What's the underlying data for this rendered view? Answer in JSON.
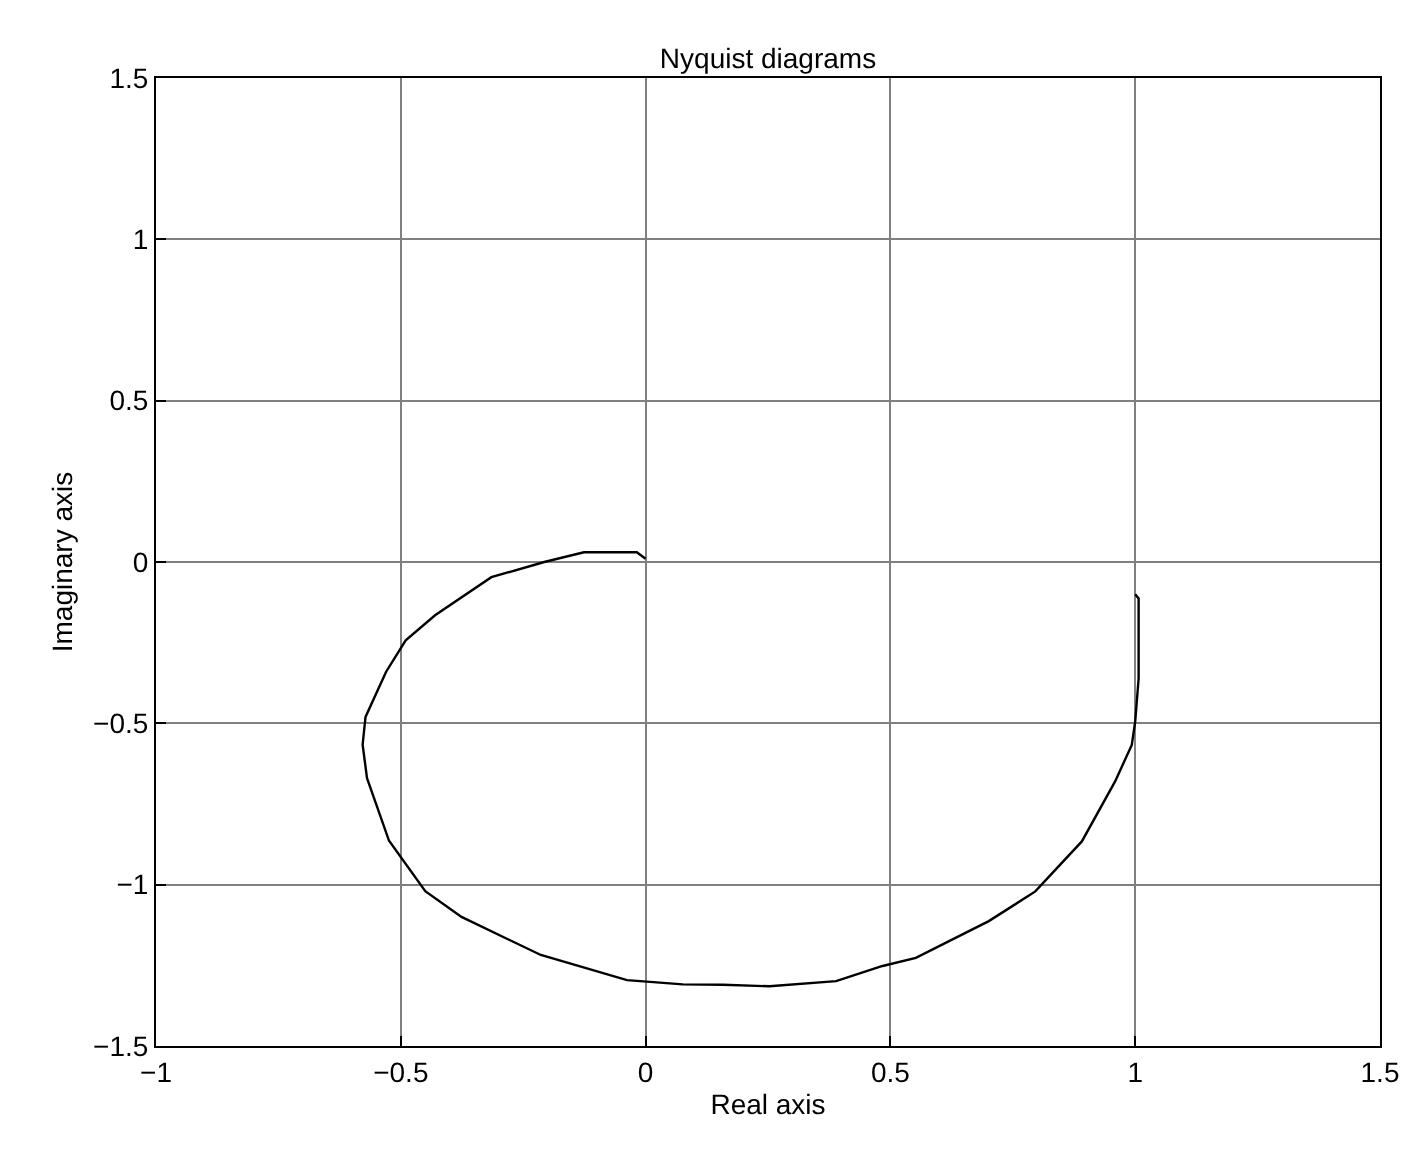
{
  "chart_data": {
    "type": "line",
    "title": "Nyquist diagrams",
    "xlabel": "Real axis",
    "ylabel": "Imaginary axis",
    "series": [
      {
        "color": "#000000",
        "x": [
          1.0,
          1.007,
          1.007,
          1.0,
          0.993,
          0.959,
          0.891,
          0.796,
          0.701,
          0.552,
          0.484,
          0.389,
          0.253,
          0.158,
          0.076,
          -0.038,
          -0.214,
          -0.376,
          -0.45,
          -0.524,
          -0.569,
          -0.578,
          -0.572,
          -0.53,
          -0.49,
          -0.43,
          -0.315,
          -0.207,
          -0.126,
          -0.018,
          0.0
        ],
        "values": [
          -0.1,
          -0.113,
          -0.361,
          -0.495,
          -0.567,
          -0.68,
          -0.866,
          -1.021,
          -1.113,
          -1.227,
          -1.252,
          -1.299,
          -1.315,
          -1.31,
          -1.309,
          -1.296,
          -1.218,
          -1.1,
          -1.02,
          -0.864,
          -0.67,
          -0.566,
          -0.48,
          -0.34,
          -0.243,
          -0.165,
          -0.047,
          0.0,
          0.03,
          0.03,
          0.01
        ]
      }
    ],
    "xlim": [
      -1,
      1.5
    ],
    "xticks": [
      -1,
      -0.5,
      0,
      0.5,
      1,
      1.5
    ],
    "ylim": [
      -1.5,
      1.5
    ],
    "yticks": [
      -1.5,
      -1,
      -0.5,
      0,
      0.5,
      1,
      1.5
    ],
    "grid": true,
    "marker": "none",
    "line_style": "solid"
  }
}
